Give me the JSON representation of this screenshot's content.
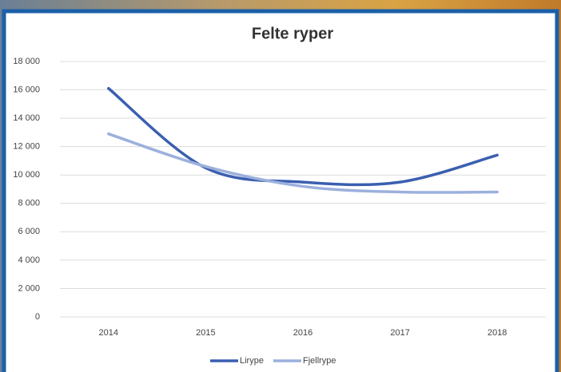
{
  "chart_data": {
    "type": "line",
    "title": "Felte ryper",
    "categories": [
      "2014",
      "2015",
      "2016",
      "2017",
      "2018"
    ],
    "series": [
      {
        "name": "Lirype",
        "color": "#3a5fb0",
        "values": [
          16100,
          10500,
          9500,
          9500,
          11400
        ]
      },
      {
        "name": "Fjellrype",
        "color": "#9cb0dd",
        "values": [
          12900,
          10600,
          9200,
          8800,
          8800
        ]
      }
    ],
    "ylim": [
      0,
      18000
    ],
    "yticks": [
      0,
      {
        "value": 2000,
        "label": "2 000"
      },
      {
        "value": 4000,
        "label": "4 000"
      },
      {
        "value": 6000,
        "label": "6 000"
      },
      {
        "value": 8000,
        "label": "8 000"
      },
      {
        "value": 10000,
        "label": "10 000"
      },
      {
        "value": 12000,
        "label": "12 000"
      },
      {
        "value": 14000,
        "label": "14 000"
      },
      {
        "value": 16000,
        "label": "16 000"
      },
      {
        "value": 18000,
        "label": "18 000"
      }
    ],
    "grid": true,
    "smooth": true,
    "legend": "bottom"
  }
}
